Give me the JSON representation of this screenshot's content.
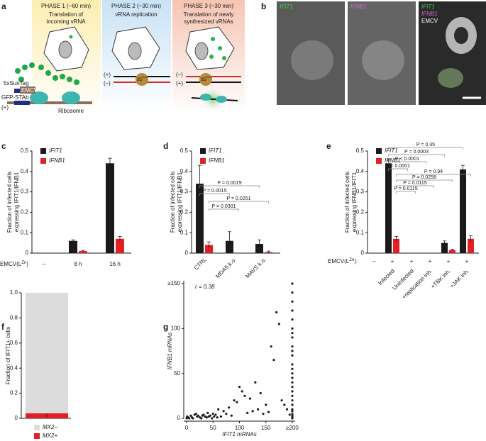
{
  "panel_labels": [
    "a",
    "b",
    "c",
    "d",
    "e",
    "f",
    "g"
  ],
  "panel_a": {
    "phases": [
      {
        "title": "PHASE 1 (~60 min)",
        "text": [
          "Translation of",
          "incoming vRNA"
        ]
      },
      {
        "title": "PHASE 2 (~30 min)",
        "text": [
          "vRNA replication"
        ]
      },
      {
        "title": "PHASE 3 (~30 min)",
        "text": [
          "Translation of newly",
          "synthesized vRNAs"
        ]
      }
    ],
    "labels": {
      "suntag": "5xSunTag",
      "emcv": "EMCV",
      "stab": "GFP-STAb",
      "ribosome": "Ribosome",
      "plus": "(+)",
      "minus": "(–)",
      "pol": [
        "3D",
        "POL"
      ]
    }
  },
  "panel_b": {
    "images": [
      {
        "labels": [
          "IFIT1"
        ]
      },
      {
        "labels": [
          "IFNB1"
        ]
      },
      {
        "labels": [
          "IFIT1",
          "IFNB1",
          "EMCV"
        ]
      }
    ]
  },
  "chart_data": [
    {
      "type": "bar",
      "y_label": [
        "Fraction of infected cells",
        "expressing IFIT1/IFNB1"
      ],
      "row_label": [
        "EMCV(L",
        "Zn",
        ")"
      ],
      "categories": [
        "–",
        "8 h",
        "16 h"
      ],
      "series": [
        {
          "name": "IFIT1",
          "color": "#1a1a1a",
          "values": [
            0,
            0.06,
            0.44
          ],
          "errors": [
            0,
            0.005,
            0.025
          ]
        },
        {
          "name": "IFNB1",
          "color": "#e31e24",
          "values": [
            0,
            0.01,
            0.07
          ],
          "errors": [
            0,
            0.003,
            0.012
          ]
        }
      ],
      "ylim": [
        0,
        0.5
      ],
      "yticks": [
        0,
        0.1,
        0.2,
        0.3,
        0.4,
        0.5
      ]
    },
    {
      "type": "bar",
      "y_label": [
        "Fraction of infected cells",
        "expressing IFIT1/IFNB1"
      ],
      "categories": [
        "CTRL",
        "MDA5 k.o.",
        "MAVS k.o."
      ],
      "series": [
        {
          "name": "IFIT1",
          "color": "#1a1a1a",
          "values": [
            0.34,
            0.06,
            0.045
          ],
          "errors": [
            0.09,
            0.045,
            0.02
          ]
        },
        {
          "name": "IFNB1",
          "color": "#e31e24",
          "values": [
            0.04,
            0,
            0.005
          ],
          "errors": [
            0.015,
            0,
            0.005
          ]
        }
      ],
      "annotations": [
        "P = 0.0019",
        "P = 0.0015",
        "P = 0.0251",
        "P = 0.0301"
      ],
      "ylim": [
        0,
        0.5
      ],
      "yticks": [
        0,
        0.1,
        0.2,
        0.3,
        0.4,
        0.5
      ]
    },
    {
      "type": "bar",
      "y_label": [
        "Fraction of infected cells",
        "expressing IFNB1/IFIT1"
      ],
      "row_label": [
        "EMCV(L",
        "Zn",
        "):"
      ],
      "conditions": [
        "–",
        "+",
        "+",
        "+",
        "+",
        "+"
      ],
      "categories": [
        null,
        "Infected",
        "Uninfected",
        "+replication inh.",
        "+TBK inh.",
        "+JAK inh."
      ],
      "series": [
        {
          "name": "IFIT1",
          "color": "#1a1a1a",
          "values": [
            0,
            0.44,
            0,
            0,
            0.05,
            0.41
          ],
          "errors": [
            0,
            0.02,
            0,
            0,
            0.01,
            0.02
          ]
        },
        {
          "name": "IFNB1",
          "color": "#e31e24",
          "values": [
            0,
            0.07,
            0,
            0,
            0.015,
            0.07
          ],
          "errors": [
            0,
            0.012,
            0,
            0,
            0.004,
            0.015
          ]
        }
      ],
      "annotations": [
        "P = 0.35",
        "P = 0.0003",
        "P < 0.0001",
        "P < 0.0001",
        "P = 0.94",
        "P = 0.0258",
        "P = 0.0115",
        "P = 0.0115"
      ],
      "ylim": [
        0,
        0.5
      ],
      "yticks": [
        0,
        0.1,
        0.2,
        0.3,
        0.4,
        0.5
      ]
    },
    {
      "type": "stacked_bar",
      "y_label": "Fraction of IFIT1+ cells",
      "series": [
        {
          "name": "MX2–",
          "color": "#dcdcdc",
          "values": [
            0.96
          ]
        },
        {
          "name": "MX2+",
          "color": "#e31e24",
          "values": [
            0.04
          ],
          "errors": [
            0.03
          ]
        }
      ],
      "ylim": [
        0,
        1
      ],
      "yticks": [
        0,
        0.2,
        0.4,
        0.6,
        0.8,
        {
          "value": 1,
          "label": "1.0"
        }
      ]
    },
    {
      "type": "scatter",
      "x_label": "IFIT1 mRNAs",
      "y_label": "IFNB1 mRNAs",
      "annotation": "r = 0.38",
      "color": "#1a1a1a",
      "x": [
        200,
        200,
        200,
        200,
        200,
        200,
        200,
        200,
        200,
        200,
        200,
        200,
        200,
        200,
        200,
        200,
        200,
        200,
        200,
        200,
        200,
        200,
        200,
        200,
        200,
        200,
        200,
        200,
        170,
        175,
        160,
        165,
        130,
        100,
        105,
        110,
        90,
        95,
        120,
        140,
        150,
        180,
        185,
        60,
        70,
        80,
        50,
        30,
        20,
        10,
        5,
        15,
        25,
        35,
        40,
        45,
        55,
        65,
        75,
        85,
        115,
        125,
        135,
        145,
        155,
        190,
        195,
        0,
        1,
        3,
        8,
        12,
        18,
        22,
        28,
        32,
        38,
        42,
        48,
        52,
        58
      ],
      "y": [
        150,
        140,
        130,
        120,
        110,
        100,
        95,
        90,
        80,
        75,
        70,
        60,
        55,
        50,
        45,
        40,
        35,
        30,
        25,
        20,
        15,
        10,
        8,
        5,
        3,
        2,
        1,
        0,
        118,
        105,
        80,
        65,
        40,
        35,
        30,
        25,
        20,
        18,
        22,
        28,
        15,
        20,
        15,
        10,
        8,
        12,
        5,
        3,
        2,
        1,
        0,
        4,
        1,
        2,
        6,
        3,
        4,
        2,
        5,
        3,
        6,
        8,
        10,
        5,
        7,
        10,
        4,
        0,
        2,
        1,
        3,
        0,
        5,
        3,
        0,
        4,
        1,
        2,
        0,
        2,
        1
      ],
      "xlim": [
        0,
        200
      ],
      "xticks": [
        0,
        50,
        100,
        150,
        {
          "value": 200,
          "label": "≥200"
        }
      ],
      "ylim": [
        0,
        150
      ],
      "yticks": [
        0,
        50,
        100,
        {
          "value": 150,
          "label": "≥150"
        }
      ]
    }
  ]
}
